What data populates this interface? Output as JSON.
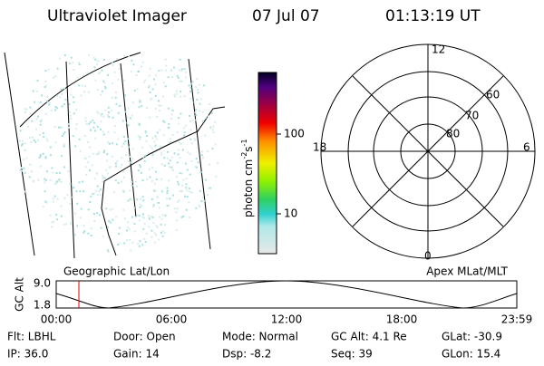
{
  "header": {
    "title": "Ultraviolet Imager",
    "date": "07 Jul 07",
    "time": "01:13:19 UT"
  },
  "colorbar": {
    "label": "photon cm",
    "exp1": "-2",
    "unit2": "s",
    "exp2": "-1",
    "ticks": [
      "100",
      "10"
    ]
  },
  "polar": {
    "mlt_labels": [
      "12",
      "18",
      "6",
      "0"
    ],
    "lat_labels": [
      "60",
      "70",
      "80"
    ]
  },
  "altitude_plot": {
    "ylabel": "GC Alt",
    "yticks": [
      "9.0",
      "1.8"
    ],
    "left_label": "Geographic Lat/Lon",
    "right_label": "Apex MLat/MLT",
    "xticks": [
      "00:00",
      "06:00",
      "12:00",
      "18:00",
      "23:59"
    ]
  },
  "footer": {
    "rows": [
      [
        "Flt: LBHL",
        "Door: Open",
        "Mode: Normal",
        "GC Alt: 4.1 Re",
        "GLat: -30.9"
      ],
      [
        "IP: 36.0",
        "Gain: 14",
        "Dsp:    -8.2",
        "Seq: 39",
        "GLon: 15.4"
      ]
    ]
  }
}
